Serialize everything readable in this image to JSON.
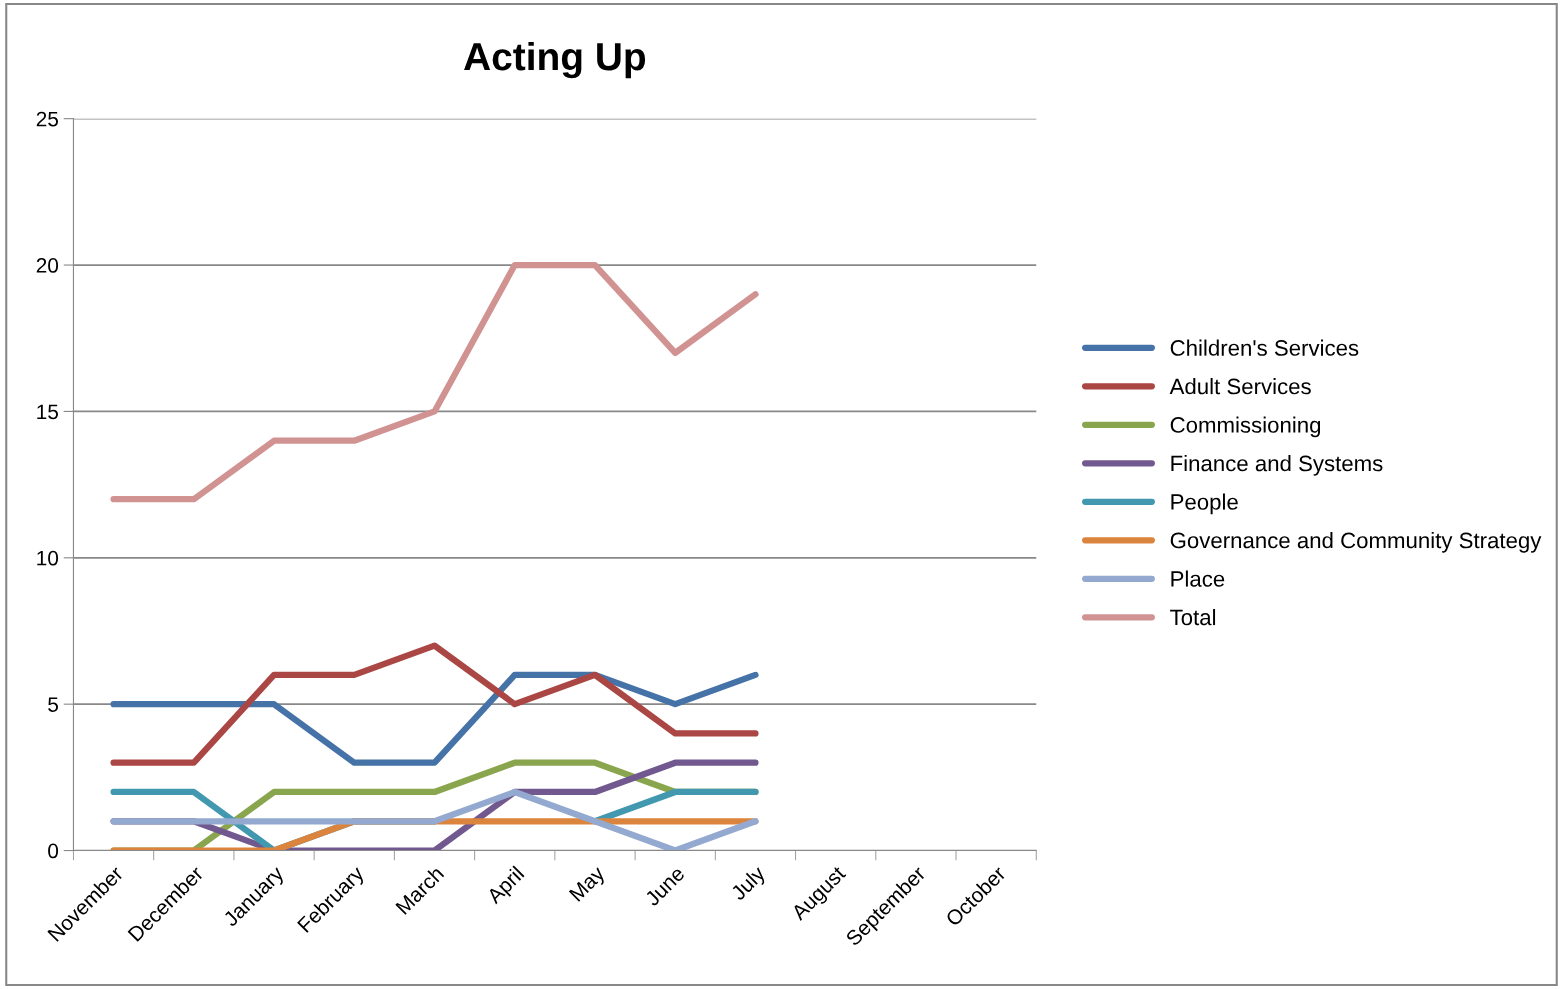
{
  "chart_data": {
    "type": "line",
    "title": "Acting Up",
    "categories": [
      "November",
      "December",
      "January",
      "February",
      "March",
      "April",
      "May",
      "June",
      "July",
      "August",
      "September",
      "October"
    ],
    "series": [
      {
        "name": "Children's Services",
        "color": "#4572a7",
        "values": [
          5,
          5,
          5,
          3,
          3,
          6,
          6,
          5,
          6,
          null,
          null,
          null
        ]
      },
      {
        "name": "Adult Services",
        "color": "#aa4643",
        "values": [
          3,
          3,
          6,
          6,
          7,
          5,
          6,
          4,
          4,
          null,
          null,
          null
        ]
      },
      {
        "name": "Commissioning",
        "color": "#89a54e",
        "values": [
          0,
          0,
          2,
          2,
          2,
          3,
          3,
          2,
          2,
          null,
          null,
          null
        ]
      },
      {
        "name": "Finance and Systems",
        "color": "#71588f",
        "values": [
          1,
          1,
          0,
          0,
          0,
          2,
          2,
          3,
          3,
          null,
          null,
          null
        ]
      },
      {
        "name": "People",
        "color": "#4198af",
        "values": [
          2,
          2,
          0,
          1,
          1,
          null,
          1,
          2,
          2,
          null,
          null,
          null
        ]
      },
      {
        "name": "Governance and Community Strategy",
        "color": "#db843d",
        "values": [
          0,
          0,
          0,
          1,
          1,
          1,
          1,
          1,
          1,
          null,
          null,
          null
        ]
      },
      {
        "name": "Place",
        "color": "#93a9cf",
        "values": [
          1,
          1,
          1,
          1,
          1,
          2,
          1,
          0,
          1,
          null,
          null,
          null
        ]
      },
      {
        "name": "Total",
        "color": "#d19392",
        "values": [
          12,
          12,
          14,
          14,
          15,
          20,
          20,
          17,
          19,
          null,
          null,
          null
        ]
      }
    ],
    "ylim": [
      0,
      25
    ],
    "yticks": [
      0,
      5,
      10,
      15,
      20,
      25
    ],
    "grid": "y",
    "legend": "right",
    "marker": "none",
    "line_style": "solid"
  }
}
